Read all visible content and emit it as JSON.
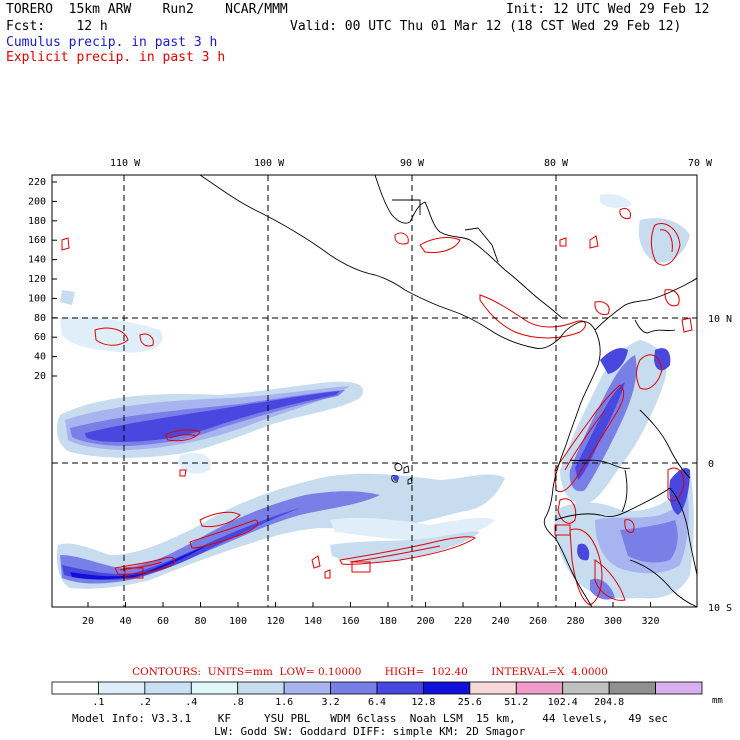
{
  "header": {
    "line1_left": "TORERO  15km ARW    Run2    NCAR/MMM",
    "line1_right": "Init: 12 UTC Wed 29 Feb 12",
    "line2_left": "Fcst:    12 h",
    "line2_right": "Valid: 00 UTC Thu 01 Mar 12 (18 CST Wed 29 Feb 12)",
    "line3": "Cumulus precip. in past 3 h",
    "line4": "Explicit precip. in past 3 h"
  },
  "map": {
    "top_lon_labels": [
      "110 W",
      "100 W",
      "90 W",
      "80 W",
      "70 W"
    ],
    "right_lat_labels": [
      "10 N",
      "0",
      "10 S"
    ],
    "left_ticks": [
      "220",
      "200",
      "180",
      "160",
      "140",
      "120",
      "100",
      "80",
      "60",
      "40",
      "20"
    ],
    "bottom_ticks": [
      "20",
      "40",
      "60",
      "80",
      "100",
      "120",
      "140",
      "160",
      "180",
      "200",
      "220",
      "240",
      "260",
      "280",
      "300",
      "320"
    ]
  },
  "contours_line": "CONTOURS:  UNITS=mm  LOW= 0.10000       HIGH=  102.40       INTERVAL=X  4.0000",
  "colorbar": {
    "colors": [
      "#ffffff",
      "#e0eefa",
      "#c8e0f5",
      "#e0f8f8",
      "#c8dcf0",
      "#a8b4f0",
      "#7880e8",
      "#4848e0",
      "#1010d8",
      "#f8d8d8",
      "#f09cc8",
      "#c0c0c0",
      "#909090",
      "#d8b0f0"
    ],
    "labels": [
      ".1",
      ".2",
      ".4",
      ".8",
      "1.6",
      "3.2",
      "6.4",
      "12.8",
      "25.6",
      "51.2",
      "102.4",
      "204.8"
    ],
    "unit": "mm"
  },
  "footer": {
    "line1": "Model Info: V3.3.1    KF     YSU PBL   WDM 6class  Noah LSM  15 km,    44 levels,   49 sec",
    "line2": "LW: Godd SW: Goddard DIFF: simple KM: 2D Smagor"
  }
}
